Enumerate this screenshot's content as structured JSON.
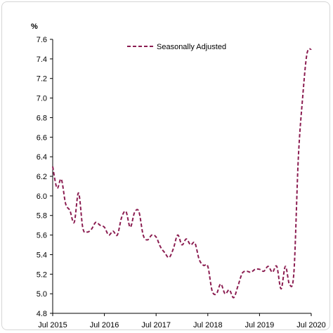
{
  "chart_data": {
    "type": "line",
    "unit_label": "%",
    "ylim": [
      4.8,
      7.6
    ],
    "y_ticks": [
      "4.8",
      "5.0",
      "5.2",
      "5.4",
      "5.6",
      "5.8",
      "6.0",
      "6.2",
      "6.4",
      "6.6",
      "6.8",
      "7.0",
      "7.2",
      "7.4",
      "7.6"
    ],
    "x_ticks": [
      "Jul 2015",
      "Jul 2016",
      "Jul 2017",
      "Jul 2018",
      "Jul 2019",
      "Jul 2020"
    ],
    "grid": false,
    "legend_position": "top-center",
    "series": [
      {
        "name": "Seasonally Adjusted",
        "color": "#8b1d51",
        "style": "dashed",
        "x": [
          "2015-07",
          "2015-08",
          "2015-09",
          "2015-10",
          "2015-11",
          "2015-12",
          "2016-01",
          "2016-02",
          "2016-03",
          "2016-04",
          "2016-05",
          "2016-06",
          "2016-07",
          "2016-08",
          "2016-09",
          "2016-10",
          "2016-11",
          "2016-12",
          "2017-01",
          "2017-02",
          "2017-03",
          "2017-04",
          "2017-05",
          "2017-06",
          "2017-07",
          "2017-08",
          "2017-09",
          "2017-10",
          "2017-11",
          "2017-12",
          "2018-01",
          "2018-02",
          "2018-03",
          "2018-04",
          "2018-05",
          "2018-06",
          "2018-07",
          "2018-08",
          "2018-09",
          "2018-10",
          "2018-11",
          "2018-12",
          "2019-01",
          "2019-02",
          "2019-03",
          "2019-04",
          "2019-05",
          "2019-06",
          "2019-07",
          "2019-08",
          "2019-09",
          "2019-10",
          "2019-11",
          "2019-12",
          "2020-01",
          "2020-02",
          "2020-03",
          "2020-04",
          "2020-05",
          "2020-06",
          "2020-07"
        ],
        "values": [
          6.3,
          6.08,
          6.17,
          5.92,
          5.85,
          5.73,
          6.03,
          5.67,
          5.63,
          5.66,
          5.73,
          5.7,
          5.68,
          5.6,
          5.64,
          5.6,
          5.78,
          5.84,
          5.68,
          5.83,
          5.84,
          5.6,
          5.55,
          5.6,
          5.58,
          5.48,
          5.42,
          5.37,
          5.46,
          5.6,
          5.5,
          5.56,
          5.5,
          5.52,
          5.35,
          5.29,
          5.28,
          5.03,
          5.0,
          5.1,
          5.0,
          5.04,
          4.96,
          5.08,
          5.21,
          5.23,
          5.22,
          5.25,
          5.25,
          5.23,
          5.28,
          5.22,
          5.28,
          5.05,
          5.28,
          5.09,
          5.23,
          6.38,
          7.0,
          7.45,
          7.5
        ]
      }
    ]
  }
}
